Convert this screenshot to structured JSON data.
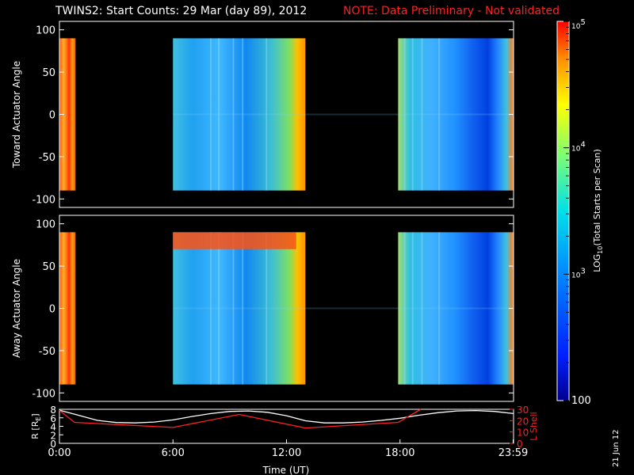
{
  "header": {
    "title": "TWINS2: Start Counts: 29 Mar (day  89), 2012",
    "note": "NOTE: Data Preliminary - Not validated",
    "note_color": "#ff2020"
  },
  "stamp": "21 Jun 12",
  "chart_data": [
    {
      "type": "heatmap",
      "panel": "top",
      "ylabel": "Toward Actuator Angle",
      "ylim": [
        -110,
        110
      ],
      "y_ticks": [
        "100",
        "50",
        "0",
        "-50",
        "-100"
      ],
      "y_tick_values": [
        100,
        50,
        0,
        -50,
        -100
      ],
      "data_y_range": [
        -90,
        90
      ],
      "x_range_hours": [
        0,
        24
      ],
      "data_intervals_hours": [
        [
          0.0,
          0.85
        ],
        [
          6.0,
          13.0
        ],
        [
          17.9,
          23.98
        ]
      ],
      "approx_log10_counts": {
        "interval_1": 4.6,
        "interval_2": 3.2,
        "interval_3": 3.1
      }
    },
    {
      "type": "heatmap",
      "panel": "middle",
      "ylabel": "Away Actuator Angle",
      "ylim": [
        -110,
        110
      ],
      "y_ticks": [
        "100",
        "50",
        "0",
        "-50",
        "-100"
      ],
      "y_tick_values": [
        100,
        50,
        0,
        -50,
        -100
      ],
      "data_y_range": [
        -90,
        90
      ],
      "x_range_hours": [
        0,
        24
      ],
      "data_intervals_hours": [
        [
          0.0,
          0.85
        ],
        [
          6.0,
          13.0
        ],
        [
          17.9,
          23.98
        ]
      ],
      "approx_log10_counts": {
        "interval_1": 4.6,
        "interval_2": 3.2,
        "interval_3": 3.1
      },
      "bright_band_angle_range": [
        70,
        90
      ]
    },
    {
      "type": "line",
      "panel": "bottom",
      "xlabel": "Time (UT)",
      "x_ticks": [
        "0:00",
        "6:00",
        "12:00",
        "18:00",
        "23:59"
      ],
      "x_tick_values": [
        0,
        6,
        12,
        18,
        23.98
      ],
      "left_axis": {
        "label": "R [R",
        "label_sub": "E",
        "label_end": "]",
        "ylim": [
          0,
          8
        ],
        "ticks": [
          "8",
          "6",
          "4",
          "2",
          "0"
        ],
        "tick_values": [
          8,
          6,
          4,
          2,
          0
        ],
        "color": "#ffffff"
      },
      "right_axis": {
        "label": "L Shell",
        "ylim": [
          0,
          30
        ],
        "ticks": [
          "30",
          "20",
          "10",
          "0"
        ],
        "tick_values": [
          30,
          20,
          10,
          0
        ],
        "color": "#ff2020"
      },
      "series": [
        {
          "axis": "left",
          "color": "#ffffff",
          "x": [
            0,
            1,
            2,
            3,
            4,
            5,
            6,
            7,
            8,
            9,
            10,
            11,
            12,
            13,
            14,
            15,
            16,
            17,
            18,
            19,
            20,
            21,
            22,
            23,
            24
          ],
          "y": [
            7.8,
            6.6,
            5.4,
            4.9,
            4.8,
            5.0,
            5.5,
            6.3,
            7.0,
            7.5,
            7.6,
            7.3,
            6.5,
            5.3,
            4.8,
            4.8,
            5.0,
            5.4,
            5.9,
            6.6,
            7.2,
            7.6,
            7.7,
            7.5,
            7.0
          ]
        },
        {
          "axis": "right",
          "color": "#ff2020",
          "x": [
            0,
            0.8,
            6.0,
            9.5,
            13.0,
            17.9,
            19.1
          ],
          "y": [
            29,
            18.5,
            14.0,
            25.5,
            13.5,
            18.5,
            30
          ]
        }
      ]
    },
    {
      "type": "colorbar",
      "label": "LOG",
      "label_sub": "10",
      "label_rest": "(Total Starts per Scan)",
      "scale": "log",
      "range": [
        100,
        100000
      ],
      "tick_labels": [
        {
          "base": "10",
          "exp": "5",
          "value": 100000
        },
        {
          "base": "10",
          "exp": "4",
          "value": 10000
        },
        {
          "base": "10",
          "exp": "3",
          "value": 1000
        },
        {
          "base": "100",
          "exp": "",
          "value": 100
        }
      ]
    }
  ]
}
